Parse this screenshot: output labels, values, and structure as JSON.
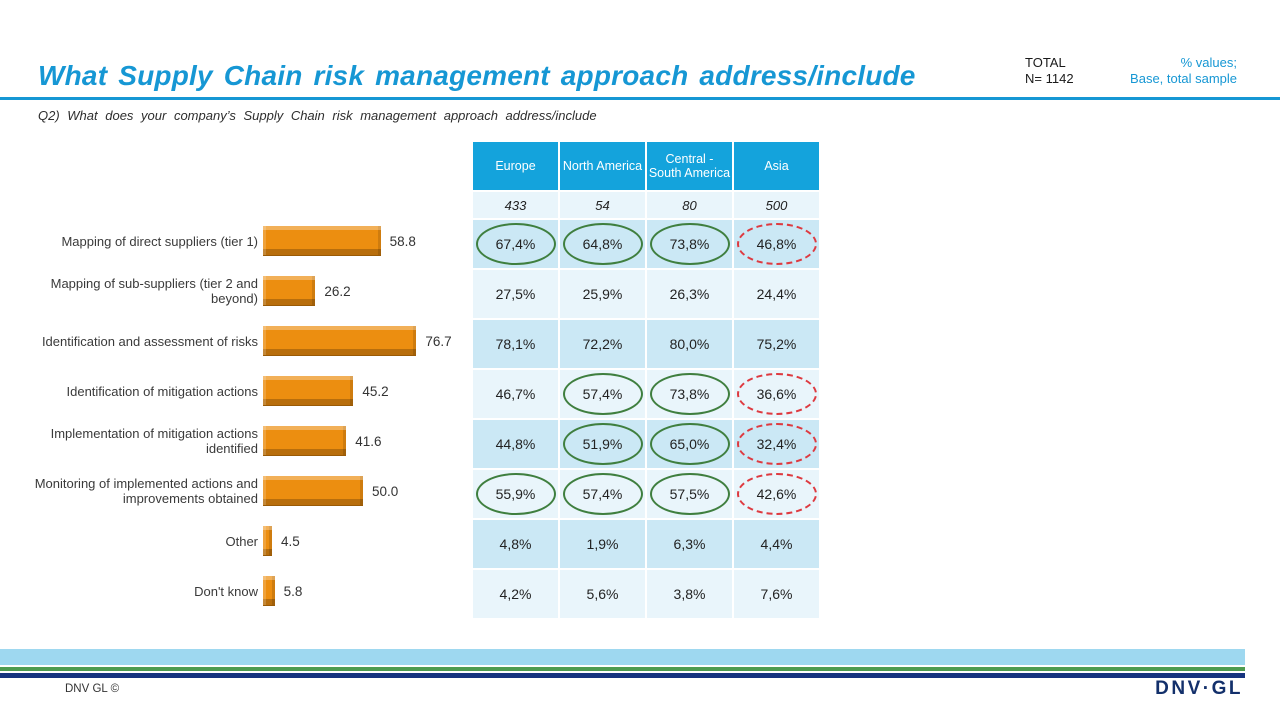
{
  "header": {
    "title": "What Supply Chain risk management approach address/include",
    "total_label": "TOTAL",
    "total_value": "N= 1142",
    "note_line1": "% values;",
    "note_line2": "Base, total sample",
    "question": "Q2) What does your company’s Supply Chain risk management approach address/include"
  },
  "footer": {
    "copyright": "DNV GL ©",
    "logo": "DNV·GL"
  },
  "colors": {
    "accent_blue": "#1697D4",
    "table_header_blue": "#14A3DC",
    "row_dark": "#CBE8F5",
    "row_light": "#E9F5FB",
    "bar_orange": "#EC8E10",
    "highlight_green": "#3F7F3F",
    "highlight_red": "#DE3A40",
    "stripe_sky": "#9ED8F0",
    "stripe_green": "#4E9B50",
    "stripe_navy": "#16337F"
  },
  "chart_data": {
    "type": "bar",
    "orientation": "horizontal",
    "title": "What Supply Chain risk management approach address/include",
    "xlabel": "",
    "ylabel": "",
    "xlim": [
      0,
      100
    ],
    "grid": false,
    "legend": "none",
    "categories": [
      "Mapping of direct suppliers (tier 1)",
      "Mapping of sub-suppliers (tier 2 and beyond)",
      "Identification and assessment of risks",
      "Identification of mitigation actions",
      "Implementation of mitigation actions identified",
      "Monitoring of implemented actions and improvements obtained",
      "Other",
      "Don't know"
    ],
    "values": [
      58.8,
      26.2,
      76.7,
      45.2,
      41.6,
      50.0,
      4.5,
      5.8
    ],
    "value_labels": [
      "58.8",
      "26.2",
      "76.7",
      "45.2",
      "41.6",
      "50.0",
      "4.5",
      "5.8"
    ],
    "table": {
      "columns": [
        "Europe",
        "North America",
        "Central - South America",
        "Asia"
      ],
      "base": [
        "433",
        "54",
        "80",
        "500"
      ],
      "rows": [
        {
          "values": [
            "67,4%",
            "64,8%",
            "73,8%",
            "46,8%"
          ],
          "marks": [
            "green",
            "green",
            "green",
            "red"
          ]
        },
        {
          "values": [
            "27,5%",
            "25,9%",
            "26,3%",
            "24,4%"
          ],
          "marks": [
            "",
            "",
            "",
            ""
          ]
        },
        {
          "values": [
            "78,1%",
            "72,2%",
            "80,0%",
            "75,2%"
          ],
          "marks": [
            "",
            "",
            "",
            ""
          ]
        },
        {
          "values": [
            "46,7%",
            "57,4%",
            "73,8%",
            "36,6%"
          ],
          "marks": [
            "",
            "green",
            "green",
            "red"
          ]
        },
        {
          "values": [
            "44,8%",
            "51,9%",
            "65,0%",
            "32,4%"
          ],
          "marks": [
            "",
            "green",
            "green",
            "red"
          ]
        },
        {
          "values": [
            "55,9%",
            "57,4%",
            "57,5%",
            "42,6%"
          ],
          "marks": [
            "green",
            "green",
            "green",
            "red"
          ]
        },
        {
          "values": [
            "4,8%",
            "1,9%",
            "6,3%",
            "4,4%"
          ],
          "marks": [
            "",
            "",
            "",
            ""
          ]
        },
        {
          "values": [
            "4,2%",
            "5,6%",
            "3,8%",
            "7,6%"
          ],
          "marks": [
            "",
            "",
            "",
            ""
          ]
        }
      ]
    }
  }
}
